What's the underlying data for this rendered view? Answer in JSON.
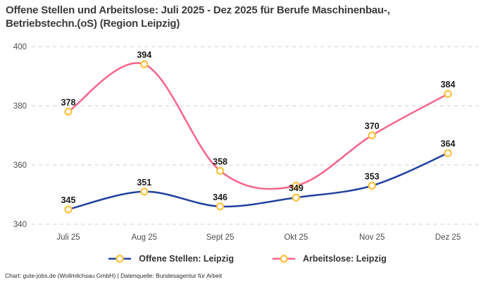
{
  "header": {
    "title_line1": "Offene Stellen und Arbeitslose: Juli 2025 - Dez 2025 für Berufe Maschinenbau-,",
    "title_line2": "Betriebstechn.(oS) (Region Leipzig)"
  },
  "chart_data": {
    "type": "line",
    "title": "Offene Stellen und Arbeitslose: Juli 2025 - Dez 2025 für Berufe Maschinenbau-, Betriebstechn.(oS) (Region Leipzig)",
    "categories": [
      "Juli 25",
      "Aug 25",
      "Sept 25",
      "Okt 25",
      "Nov 25",
      "Dez 25"
    ],
    "series": [
      {
        "name": "Offene Stellen: Leipzig",
        "color": "#21409f",
        "values": [
          345,
          351,
          346,
          349,
          353,
          364
        ],
        "labels": [
          "345",
          "351",
          "346",
          "349",
          "353",
          "364"
        ]
      },
      {
        "name": "Arbeitslose: Leipzig",
        "color": "#f7648a",
        "values": [
          378,
          394,
          358,
          353,
          370,
          384
        ],
        "labels": [
          "378",
          "394",
          "358",
          "",
          "370",
          "384"
        ]
      }
    ],
    "ylim": [
      340,
      400
    ],
    "yticks": [
      340,
      360,
      380,
      400
    ],
    "xlabel": "",
    "ylabel": "",
    "grid": "horizontal-dashed",
    "grid_color": "#cccccc",
    "legend_position": "bottom",
    "curve": "spline",
    "marker": {
      "fill": "#ffffff",
      "stroke": "#fdc13c"
    }
  },
  "footer": {
    "text": "Chart: gute-jobs.de (Wollmilchsau GmbH) | Datenquelle: Bundesagentur für Arbeit"
  }
}
